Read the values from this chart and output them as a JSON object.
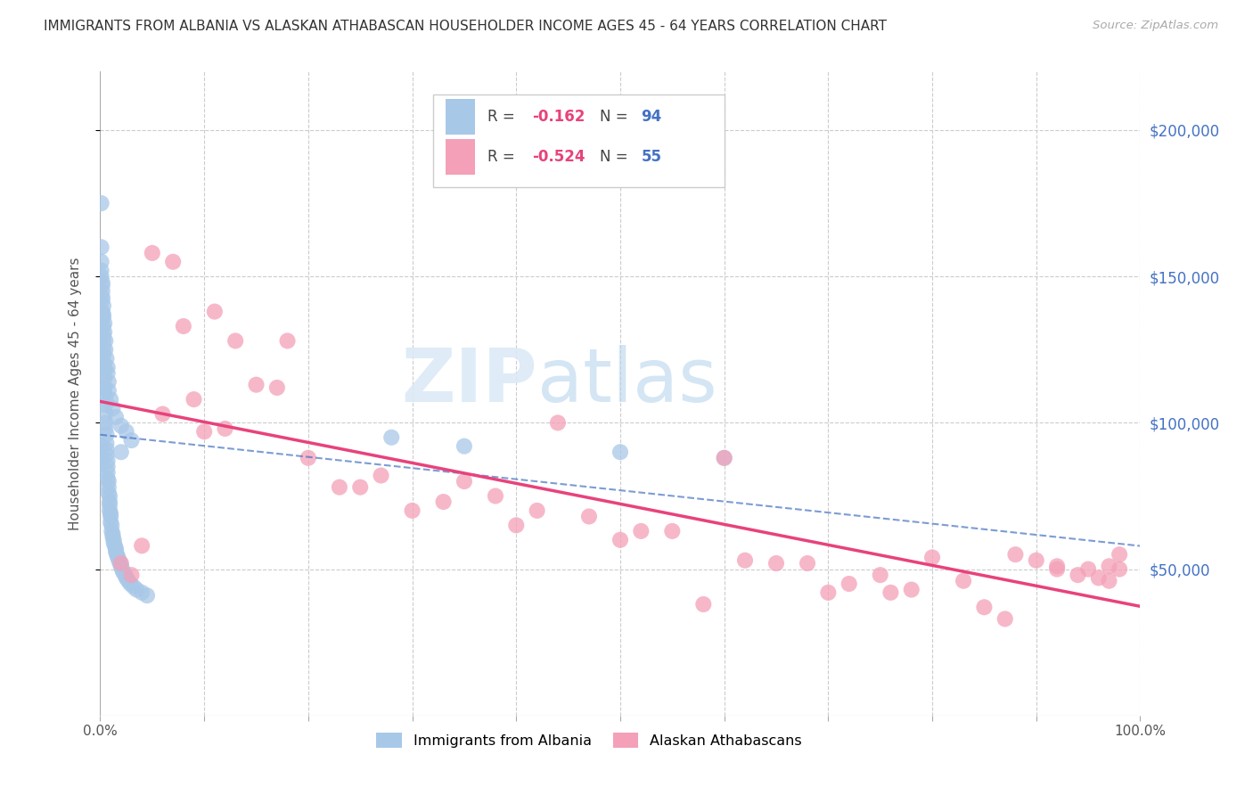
{
  "title": "IMMIGRANTS FROM ALBANIA VS ALASKAN ATHABASCAN HOUSEHOLDER INCOME AGES 45 - 64 YEARS CORRELATION CHART",
  "source": "Source: ZipAtlas.com",
  "ylabel": "Householder Income Ages 45 - 64 years",
  "series1_label": "Immigrants from Albania",
  "series2_label": "Alaskan Athabascans",
  "series1_R": -0.162,
  "series1_N": 94,
  "series2_R": -0.524,
  "series2_N": 55,
  "series1_color": "#a8c8e8",
  "series2_color": "#f4a0b8",
  "series1_line_color": "#4472c4",
  "series2_line_color": "#e8427c",
  "xlim": [
    0.0,
    1.0
  ],
  "ylim": [
    0,
    220000
  ],
  "yticks": [
    50000,
    100000,
    150000,
    200000
  ],
  "ytick_labels": [
    "$50,000",
    "$100,000",
    "$150,000",
    "$200,000"
  ],
  "xtick_labels_left": "0.0%",
  "xtick_labels_right": "100.0%",
  "background_color": "#ffffff",
  "watermark_ZIP": "ZIP",
  "watermark_atlas": "atlas",
  "series1_x": [
    0.001,
    0.001,
    0.001,
    0.002,
    0.002,
    0.002,
    0.002,
    0.003,
    0.003,
    0.003,
    0.003,
    0.003,
    0.003,
    0.004,
    0.004,
    0.004,
    0.004,
    0.004,
    0.005,
    0.005,
    0.005,
    0.005,
    0.005,
    0.006,
    0.006,
    0.006,
    0.006,
    0.007,
    0.007,
    0.007,
    0.007,
    0.008,
    0.008,
    0.008,
    0.009,
    0.009,
    0.009,
    0.009,
    0.01,
    0.01,
    0.01,
    0.011,
    0.011,
    0.012,
    0.012,
    0.013,
    0.013,
    0.014,
    0.015,
    0.015,
    0.016,
    0.017,
    0.018,
    0.019,
    0.02,
    0.021,
    0.022,
    0.024,
    0.025,
    0.027,
    0.029,
    0.032,
    0.035,
    0.04,
    0.045,
    0.001,
    0.001,
    0.002,
    0.002,
    0.003,
    0.003,
    0.004,
    0.004,
    0.005,
    0.005,
    0.006,
    0.007,
    0.007,
    0.008,
    0.008,
    0.01,
    0.012,
    0.015,
    0.02,
    0.025,
    0.03,
    0.001,
    0.02,
    0.28,
    0.35,
    0.5,
    0.6,
    0.001,
    0.001
  ],
  "series1_y": [
    175000,
    160000,
    152000,
    148000,
    145000,
    142000,
    138000,
    136000,
    133000,
    130000,
    128000,
    125000,
    123000,
    120000,
    118000,
    115000,
    112000,
    110000,
    108000,
    106000,
    103000,
    100000,
    98000,
    96000,
    93000,
    91000,
    89000,
    87000,
    85000,
    83000,
    81000,
    80000,
    78000,
    76000,
    75000,
    73000,
    72000,
    70000,
    69000,
    68000,
    66000,
    65000,
    63000,
    62000,
    61000,
    60000,
    59000,
    58000,
    57000,
    56000,
    55000,
    54000,
    53000,
    52000,
    51000,
    50000,
    49000,
    48000,
    47000,
    46000,
    45000,
    44000,
    43000,
    42000,
    41000,
    155000,
    150000,
    147000,
    143000,
    140000,
    137000,
    134000,
    131000,
    128000,
    125000,
    122000,
    119000,
    117000,
    114000,
    111000,
    108000,
    105000,
    102000,
    99000,
    97000,
    94000,
    92000,
    90000,
    95000,
    92000,
    90000,
    88000,
    88000,
    86000
  ],
  "series2_x": [
    0.06,
    0.1,
    0.08,
    0.12,
    0.05,
    0.15,
    0.18,
    0.25,
    0.3,
    0.38,
    0.44,
    0.5,
    0.6,
    0.65,
    0.7,
    0.75,
    0.78,
    0.8,
    0.83,
    0.85,
    0.87,
    0.9,
    0.92,
    0.94,
    0.95,
    0.96,
    0.97,
    0.97,
    0.98,
    0.98,
    0.27,
    0.33,
    0.4,
    0.47,
    0.55,
    0.62,
    0.03,
    0.04,
    0.07,
    0.09,
    0.11,
    0.13,
    0.17,
    0.2,
    0.23,
    0.35,
    0.42,
    0.52,
    0.58,
    0.68,
    0.72,
    0.76,
    0.88,
    0.92,
    0.02
  ],
  "series2_y": [
    103000,
    97000,
    133000,
    98000,
    158000,
    113000,
    128000,
    78000,
    70000,
    75000,
    100000,
    60000,
    88000,
    52000,
    42000,
    48000,
    43000,
    54000,
    46000,
    37000,
    33000,
    53000,
    50000,
    48000,
    50000,
    47000,
    51000,
    46000,
    50000,
    55000,
    82000,
    73000,
    65000,
    68000,
    63000,
    53000,
    48000,
    58000,
    155000,
    108000,
    138000,
    128000,
    112000,
    88000,
    78000,
    80000,
    70000,
    63000,
    38000,
    52000,
    45000,
    42000,
    55000,
    51000,
    52000
  ]
}
